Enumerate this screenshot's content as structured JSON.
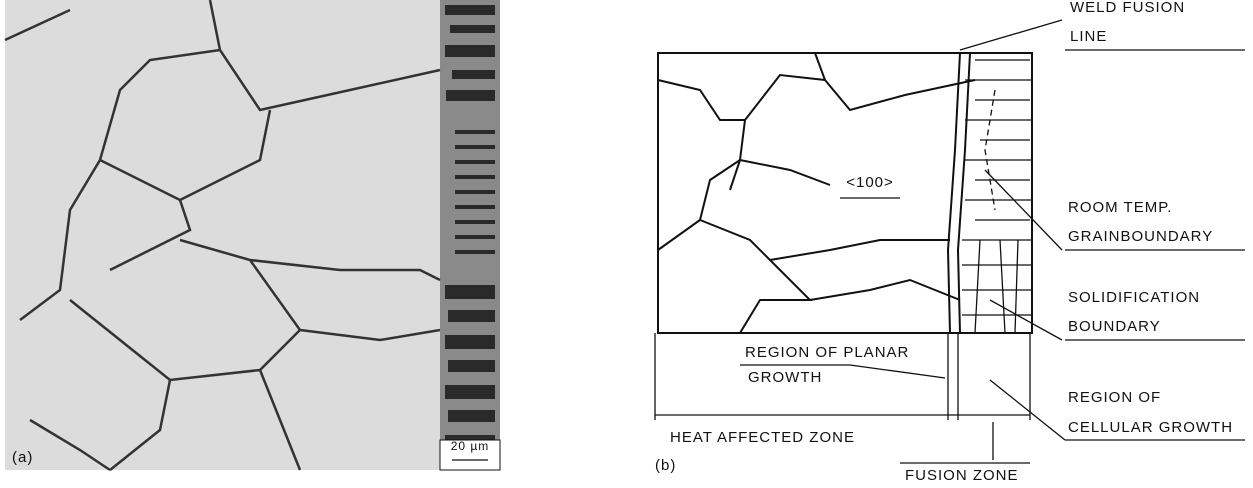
{
  "panel_a": {
    "label": "(a)",
    "scale_bar": "20 µm"
  },
  "panel_b": {
    "label": "(b)",
    "orientation": "<100>",
    "weld_fusion_line": [
      "WELD FUSION",
      "LINE"
    ],
    "room_temp_grainboundary": [
      "ROOM TEMP.",
      "GRAINBOUNDARY"
    ],
    "solidification_boundary": [
      "SOLIDIFICATION",
      "BOUNDARY"
    ],
    "region_of_planar_growth": [
      "REGION OF PLANAR",
      "GROWTH"
    ],
    "region_of_cellular_growth": [
      "REGION OF",
      "CELLULAR GROWTH"
    ],
    "heat_affected_zone": "HEAT AFFECTED ZONE",
    "fusion_zone": "FUSION ZONE"
  }
}
